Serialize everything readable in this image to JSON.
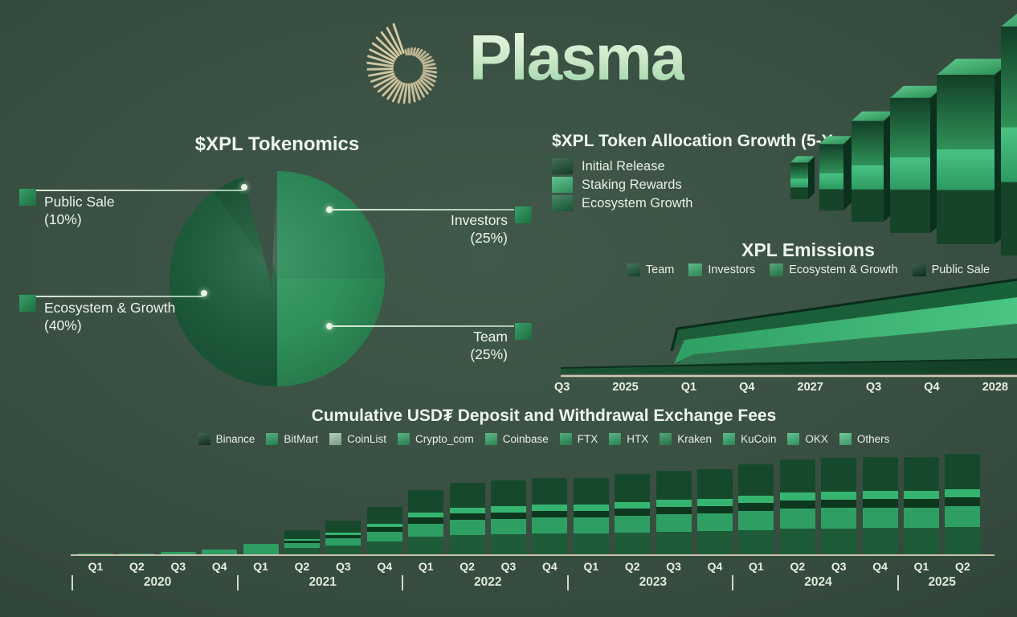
{
  "brand": {
    "wordmark": "Plasma",
    "logo_icon": "sunburst-spiral-icon",
    "logo_ray_color": "#d9cba4"
  },
  "palette": {
    "background": "#354b3e",
    "bright_green": "#3cb371",
    "dark_green": "#16492c",
    "axis_line": "#cdc8b2",
    "text": "#edf5ec"
  },
  "chart_data": [
    {
      "id": "tokenomics_pie",
      "type": "pie",
      "title": "$XPL Tokenomics",
      "legend_position": "callouts",
      "slices": [
        {
          "label": "Investors",
          "pct_label": "(25%)",
          "value": 25,
          "color": "#2d8757"
        },
        {
          "label": "Team",
          "pct_label": "(25%)",
          "value": 25,
          "color": "#2f9059"
        },
        {
          "label": "Ecosystem & Growth",
          "pct_label": "(40%)",
          "value": 40,
          "color": "#1d5a3a"
        },
        {
          "label": "Public Sale",
          "pct_label": "(10%)",
          "value": 10,
          "color": "#1a5233"
        }
      ]
    },
    {
      "id": "allocation_growth",
      "type": "bar",
      "title": "$XPL Token Allocation Growth (5-Year Projection)",
      "legend_position": "left",
      "legend": [
        {
          "label": "Initial Release",
          "color": "#174c2e"
        },
        {
          "label": "Staking Rewards",
          "color": "#3cb374"
        },
        {
          "label": "Ecosystem Growth",
          "color": "#1d6b41"
        }
      ],
      "bars_relative_heights": [
        16,
        29,
        44,
        59,
        74,
        100
      ],
      "segment_fractions_bottom_to_top": [
        0.32,
        0.24,
        0.44
      ]
    },
    {
      "id": "xpl_emissions",
      "type": "area",
      "title": "XPL Emissions",
      "legend_position": "top",
      "legend": [
        {
          "label": "Team",
          "color": "#1b5435"
        },
        {
          "label": "Investors",
          "color": "#3aa96c"
        },
        {
          "label": "Ecosystem & Growth",
          "color": "#2f9059"
        },
        {
          "label": "Public Sale",
          "color": "#0e3922"
        }
      ],
      "x_labels": [
        "Q3",
        "2025",
        "Q1",
        "Q4",
        "2027",
        "Q3",
        "Q4",
        "2028"
      ],
      "series_relative_thickness": {
        "Public Sale": [
          3,
          4,
          5,
          6,
          8,
          10,
          12,
          14
        ],
        "Ecosystem & Growth": [
          0,
          0,
          14,
          16,
          19,
          22,
          25,
          28
        ],
        "Investors": [
          0,
          0,
          10,
          11,
          13,
          15,
          17,
          19
        ],
        "Team": [
          0,
          0,
          6,
          7,
          8,
          9,
          10,
          11
        ]
      }
    },
    {
      "id": "exchange_fees",
      "type": "bar",
      "title": "Cumulative USD₮ Deposit and Withdrawal Exchange Fees",
      "legend_position": "top",
      "legend": [
        {
          "label": "Binance",
          "color": "#143d25"
        },
        {
          "label": "BitMart",
          "color": "#2f9e63"
        },
        {
          "label": "CoinList",
          "color": "#9ec4a8"
        },
        {
          "label": "Crypto_com",
          "color": "#31a066"
        },
        {
          "label": "Coinbase",
          "color": "#3aa76c"
        },
        {
          "label": "FTX",
          "color": "#2c9a60"
        },
        {
          "label": "HTX",
          "color": "#33a468"
        },
        {
          "label": "Kraken",
          "color": "#2e9059"
        },
        {
          "label": "KuCoin",
          "color": "#37ab6e"
        },
        {
          "label": "OKX",
          "color": "#3db575"
        },
        {
          "label": "Others",
          "color": "#4fbd80"
        }
      ],
      "x_quarters": [
        "Q1",
        "Q2",
        "Q3",
        "Q4",
        "Q1",
        "Q2",
        "Q3",
        "Q4",
        "Q1",
        "Q2",
        "Q3",
        "Q4",
        "Q1",
        "Q2",
        "Q3",
        "Q4",
        "Q1",
        "Q2",
        "Q3",
        "Q4",
        "Q1",
        "Q2"
      ],
      "year_groups": [
        {
          "label": "2020",
          "quarters": 4
        },
        {
          "label": "2021",
          "quarters": 4
        },
        {
          "label": "2022",
          "quarters": 4
        },
        {
          "label": "2023",
          "quarters": 4
        },
        {
          "label": "2024",
          "quarters": 4
        },
        {
          "label": "2025",
          "quarters": 2
        }
      ],
      "values_relative": [
        1,
        1.5,
        3,
        6,
        13,
        30,
        42,
        59,
        80,
        89,
        92,
        95,
        95,
        100,
        104,
        106,
        112,
        118,
        120,
        121,
        121,
        125
      ],
      "stack_fractions_bottom_to_top": [
        0.27,
        0.21,
        0.09,
        0.08,
        0.35
      ],
      "stack_colors_bottom_to_top": [
        "#1e5c39",
        "#2f9e63",
        "#0e371f",
        "#35b470",
        "#16492c"
      ]
    }
  ]
}
